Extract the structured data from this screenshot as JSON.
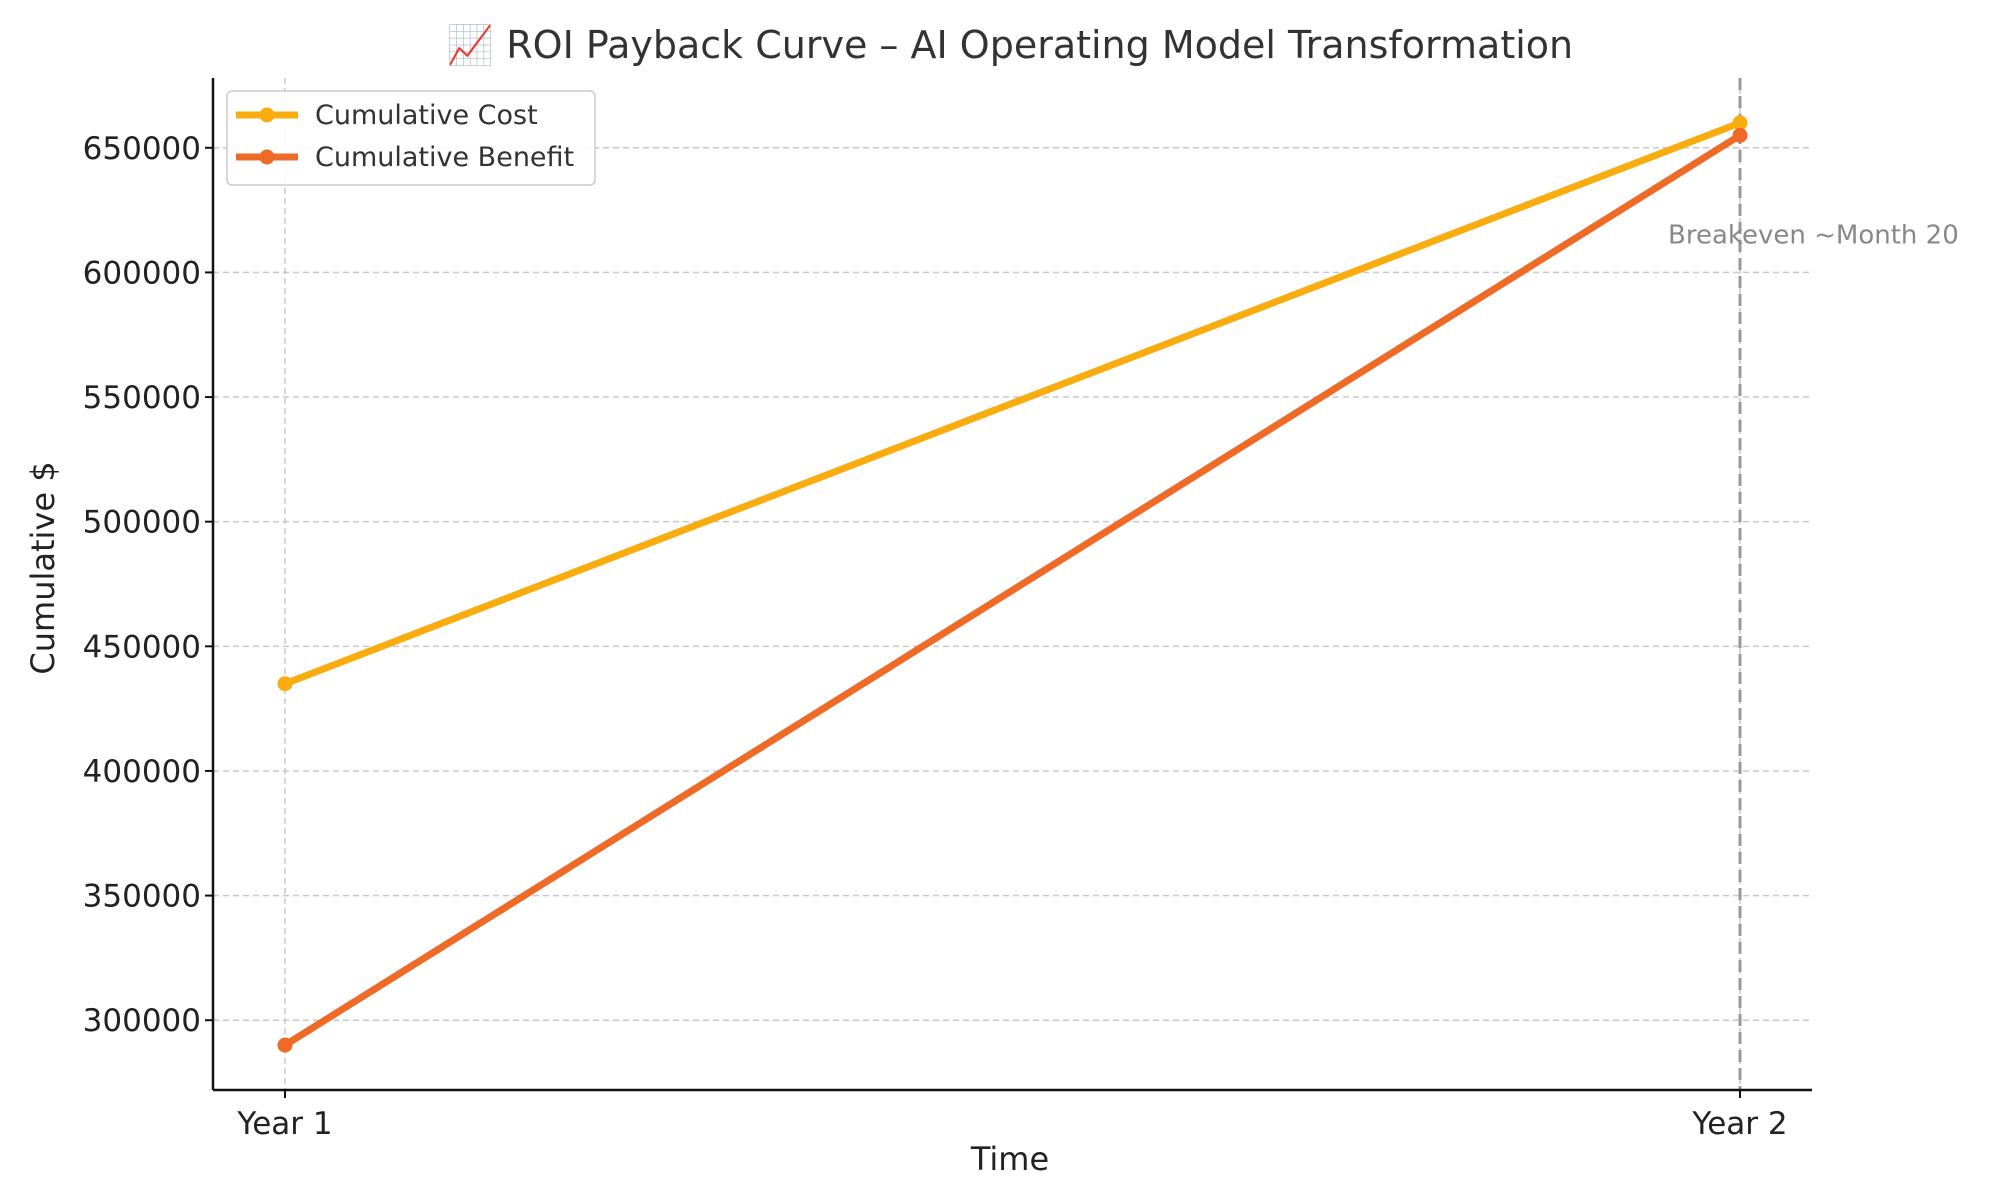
{
  "chart_data": {
    "type": "line",
    "title": "📈 ROI Payback Curve – AI Operating Model Transformation",
    "xlabel": "Time",
    "ylabel": "Cumulative $",
    "categories": [
      "Year 1",
      "Year 2"
    ],
    "ylim": [
      272000,
      678000
    ],
    "yticks": [
      300000,
      350000,
      400000,
      450000,
      500000,
      550000,
      600000,
      650000
    ],
    "grid": true,
    "legend_position": "upper-left",
    "series": [
      {
        "name": "Cumulative Cost",
        "color": "#F9AC0F",
        "values": [
          435000,
          660000
        ]
      },
      {
        "name": "Cumulative Benefit",
        "color": "#EE6A26",
        "values": [
          290000,
          655000
        ]
      }
    ],
    "annotations": [
      {
        "text": "Breakeven ~Month 20",
        "x": "Year 2",
        "y": 610000,
        "color": "#888888"
      }
    ],
    "vlines": [
      {
        "x": "Year 2",
        "color": "#999999",
        "style": "dashed"
      }
    ]
  }
}
